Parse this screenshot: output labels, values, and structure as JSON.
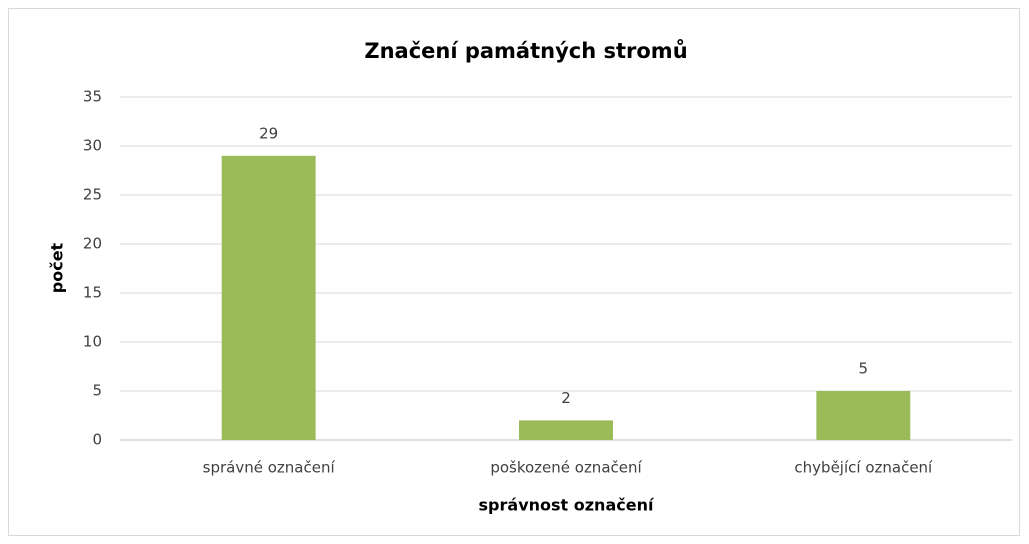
{
  "chart_data": {
    "type": "bar",
    "title": "Značení památných stromů",
    "x_label": "správnost označení",
    "y_label": "počet",
    "categories": [
      "správné označení",
      "poškozené označení",
      "chybějící označení"
    ],
    "values": [
      29,
      2,
      5
    ],
    "color": "#9bbb59",
    "ylim": [
      0,
      35
    ],
    "yticks": [
      0,
      5,
      10,
      15,
      20,
      25,
      30,
      35
    ],
    "grid": true,
    "data_labels": true
  }
}
